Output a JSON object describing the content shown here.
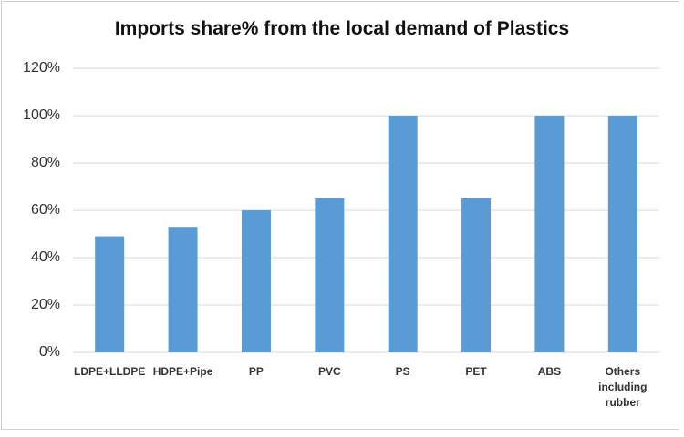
{
  "chart_data": {
    "type": "bar",
    "title": "Imports share% from the local demand of Plastics",
    "categories": [
      "LDPE+LLDPE",
      "HDPE+Pipe",
      "PP",
      "PVC",
      "PS",
      "PET",
      "ABS",
      "Others including rubber"
    ],
    "values": [
      49,
      53,
      60,
      65,
      100,
      65,
      100,
      100
    ],
    "color": "#5b9bd5",
    "ylim": [
      0,
      120
    ],
    "yticks": [
      {
        "value": 0,
        "label": "0%"
      },
      {
        "value": 20,
        "label": "20%"
      },
      {
        "value": 40,
        "label": "40%"
      },
      {
        "value": 60,
        "label": "60%"
      },
      {
        "value": 80,
        "label": "80%"
      },
      {
        "value": 100,
        "label": "100%"
      },
      {
        "value": 120,
        "label": "120%"
      }
    ],
    "grid": true
  }
}
